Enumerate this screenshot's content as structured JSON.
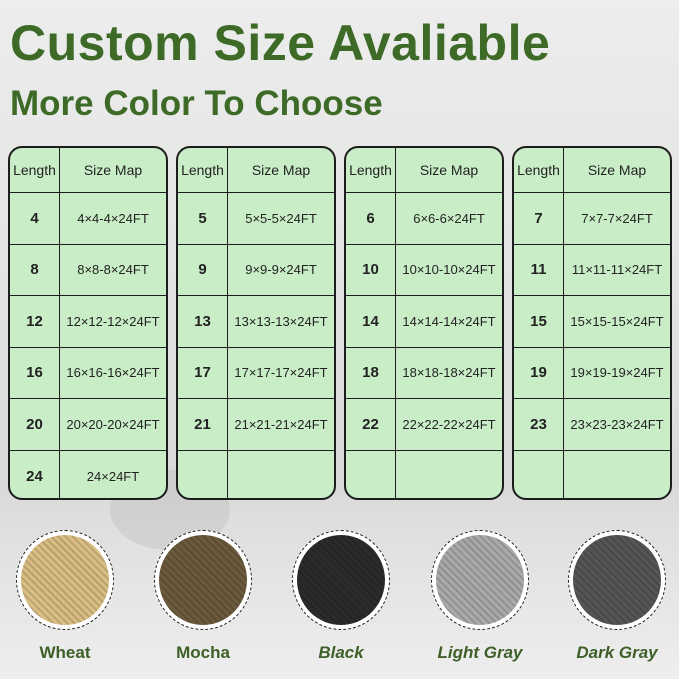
{
  "title": "Custom Size Avaliable",
  "subtitle": "More Color To Choose",
  "table_headers": {
    "length": "Length",
    "size_map": "Size Map"
  },
  "tables": [
    {
      "rows": [
        [
          "4",
          "4×4-4×24FT"
        ],
        [
          "8",
          "8×8-8×24FT"
        ],
        [
          "12",
          "12×12-12×24FT"
        ],
        [
          "16",
          "16×16-16×24FT"
        ],
        [
          "20",
          "20×20-20×24FT"
        ],
        [
          "24",
          "24×24FT"
        ]
      ]
    },
    {
      "rows": [
        [
          "5",
          "5×5-5×24FT"
        ],
        [
          "9",
          "9×9-9×24FT"
        ],
        [
          "13",
          "13×13-13×24FT"
        ],
        [
          "17",
          "17×17-17×24FT"
        ],
        [
          "21",
          "21×21-21×24FT"
        ],
        [
          "",
          ""
        ]
      ]
    },
    {
      "rows": [
        [
          "6",
          "6×6-6×24FT"
        ],
        [
          "10",
          "10×10-10×24FT"
        ],
        [
          "14",
          "14×14-14×24FT"
        ],
        [
          "18",
          "18×18-18×24FT"
        ],
        [
          "22",
          "22×22-22×24FT"
        ],
        [
          "",
          ""
        ]
      ]
    },
    {
      "rows": [
        [
          "7",
          "7×7-7×24FT"
        ],
        [
          "11",
          "11×11-11×24FT"
        ],
        [
          "15",
          "15×15-15×24FT"
        ],
        [
          "19",
          "19×19-19×24FT"
        ],
        [
          "23",
          "23×23-23×24FT"
        ],
        [
          "",
          ""
        ]
      ]
    }
  ],
  "colors": [
    {
      "label": "Wheat",
      "swatch": "#d9bd82",
      "italic": false
    },
    {
      "label": "Mocha",
      "swatch": "#6b5a3c",
      "italic": false
    },
    {
      "label": "Black",
      "swatch": "#2b2b2b",
      "italic": true
    },
    {
      "label": "Light Gray",
      "swatch": "#a9a9a9",
      "italic": true
    },
    {
      "label": "Dark Gray",
      "swatch": "#555555",
      "italic": true
    }
  ]
}
